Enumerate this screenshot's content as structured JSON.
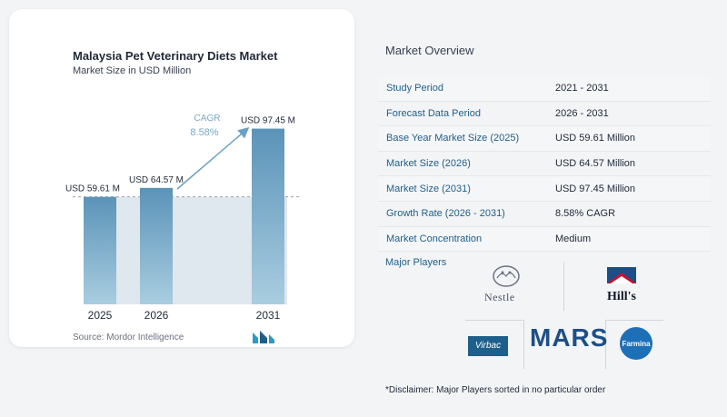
{
  "chart_data": {
    "type": "bar",
    "title": "Malaysia Pet Veterinary Diets Market",
    "subtitle": "Market Size in USD Million",
    "categories": [
      "2025",
      "2026",
      "2031"
    ],
    "values": [
      59.61,
      64.57,
      97.45
    ],
    "data_labels": [
      "USD 59.61 M",
      "USD 64.57 M",
      "USD 97.45 M"
    ],
    "cagr_label": "CAGR",
    "cagr_value": "8.58%",
    "colors": {
      "bar": "#5b93b8",
      "bar_light": "#a9cde0",
      "band": "#dfe7ef",
      "arrow": "#6aa0c4",
      "cagr_text": "#7aa7c7"
    }
  },
  "source": "Source:  Mordor Intelligence",
  "overview": {
    "title": "Market Overview",
    "rows": [
      {
        "label": "Study Period",
        "value": "2021 - 2031"
      },
      {
        "label": "Forecast Data Period",
        "value": "2026 - 2031"
      },
      {
        "label": "Base Year Market Size (2025)",
        "value": "USD 59.61 Million"
      },
      {
        "label": "Market Size (2026)",
        "value": "USD 64.57 Million"
      },
      {
        "label": "Market Size (2031)",
        "value": "USD 97.45 Million"
      },
      {
        "label": "Growth Rate (2026 - 2031)",
        "value": "8.58% CAGR"
      },
      {
        "label": "Market Concentration",
        "value": "Medium"
      }
    ]
  },
  "players": {
    "title": "Major Players",
    "logos": [
      "Nestle",
      "Hill's",
      "Virbac",
      "MARS",
      "Farmina"
    ]
  },
  "disclaimer": "*Disclaimer: Major Players sorted in no particular order"
}
